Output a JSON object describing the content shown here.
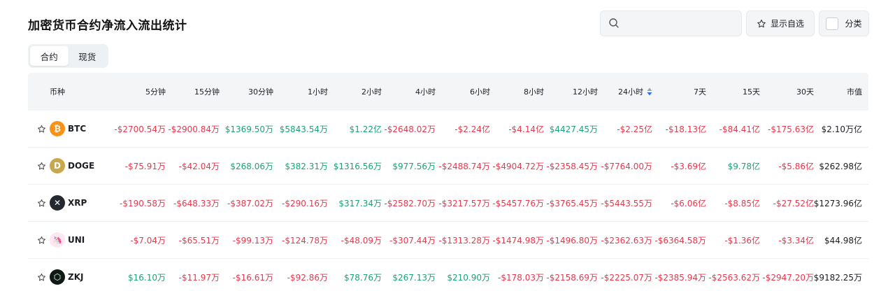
{
  "title": "加密货币合约净流入流出统计",
  "search": {
    "placeholder": "",
    "icon": "search-icon"
  },
  "watchlist_button": {
    "label": "显示自选",
    "icon": "star-icon"
  },
  "category_button": {
    "label": "分类",
    "checked": false
  },
  "tabs": [
    {
      "label": "合约",
      "active": true
    },
    {
      "label": "现货",
      "active": false
    }
  ],
  "columns": [
    "币种",
    "5分钟",
    "15分钟",
    "30分钟",
    "1小时",
    "2小时",
    "4小时",
    "6小时",
    "8小时",
    "12小时",
    "24小时",
    "7天",
    "15天",
    "30天",
    "市值"
  ],
  "sorted_column": "24小时",
  "colors": {
    "up": "#1aa37a",
    "down": "#e8384d",
    "header_bg": "#f3f5f7"
  },
  "rows": [
    {
      "coin": "BTC",
      "logo": "btc-logo",
      "logo_color": "#f7931a",
      "logo_char": "₿",
      "values": [
        "-$2700.54万",
        "-$2900.84万",
        "$1369.50万",
        "$5843.54万",
        "$1.22亿",
        "-$2648.02万",
        "-$2.24亿",
        "-$4.14亿",
        "$4427.45万",
        "-$2.25亿",
        "-$18.13亿",
        "-$84.41亿",
        "-$175.63亿"
      ],
      "market_cap": "$2.10万亿"
    },
    {
      "coin": "DOGE",
      "logo": "doge-logo",
      "logo_color": "#c9a84c",
      "logo_char": "D",
      "values": [
        "-$75.91万",
        "-$42.04万",
        "$268.06万",
        "$382.31万",
        "$1316.56万",
        "$977.56万",
        "-$2488.74万",
        "-$4904.72万",
        "-$2358.45万",
        "-$7764.00万",
        "-$3.69亿",
        "$9.78亿",
        "-$5.86亿"
      ],
      "market_cap": "$262.98亿"
    },
    {
      "coin": "XRP",
      "logo": "xrp-logo",
      "logo_color": "#23292f",
      "logo_char": "✕",
      "values": [
        "-$190.58万",
        "-$648.33万",
        "-$387.02万",
        "-$290.16万",
        "$317.34万",
        "-$2582.70万",
        "-$3217.57万",
        "-$5457.76万",
        "-$3765.45万",
        "-$5443.55万",
        "-$6.06亿",
        "-$8.85亿",
        "-$27.52亿"
      ],
      "market_cap": "$1273.96亿"
    },
    {
      "coin": "UNI",
      "logo": "uni-logo",
      "logo_color": "#fde7f1",
      "logo_char": "🦄",
      "values": [
        "-$7.04万",
        "-$65.51万",
        "-$99.13万",
        "-$124.78万",
        "-$48.09万",
        "-$307.44万",
        "-$1313.28万",
        "-$1474.98万",
        "-$1496.80万",
        "-$2362.63万",
        "-$6364.58万",
        "-$1.36亿",
        "-$3.34亿"
      ],
      "market_cap": "$44.98亿"
    },
    {
      "coin": "ZKJ",
      "logo": "zkj-logo",
      "logo_color": "#0e1a14",
      "logo_char": "⬡",
      "values": [
        "$16.10万",
        "-$11.97万",
        "-$16.61万",
        "-$92.86万",
        "$78.76万",
        "$267.13万",
        "$210.90万",
        "-$178.03万",
        "-$2158.69万",
        "-$2225.07万",
        "-$2385.94万",
        "-$2563.62万",
        "-$2947.20万"
      ],
      "market_cap": "$9182.25万"
    }
  ]
}
